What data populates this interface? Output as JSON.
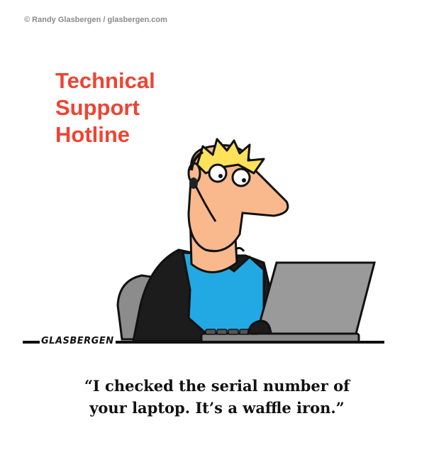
{
  "copyright": "© Randy Glasbergen / glasbergen.com",
  "sign": {
    "lines": [
      "Technical",
      "Support",
      "Hotline"
    ],
    "color": "#ee4433"
  },
  "signature": "GLASBERGEN",
  "caption": {
    "lines": [
      "“I checked the serial number of",
      "your laptop. It’s a waffle iron.”"
    ]
  },
  "palette": {
    "skin": "#f9b98c",
    "shirt": "#22a8e2",
    "jacket": "#1c1c1c",
    "hair": "#fde25a",
    "laptop": "#9a9a9a",
    "chair": "#8c8c8c"
  }
}
